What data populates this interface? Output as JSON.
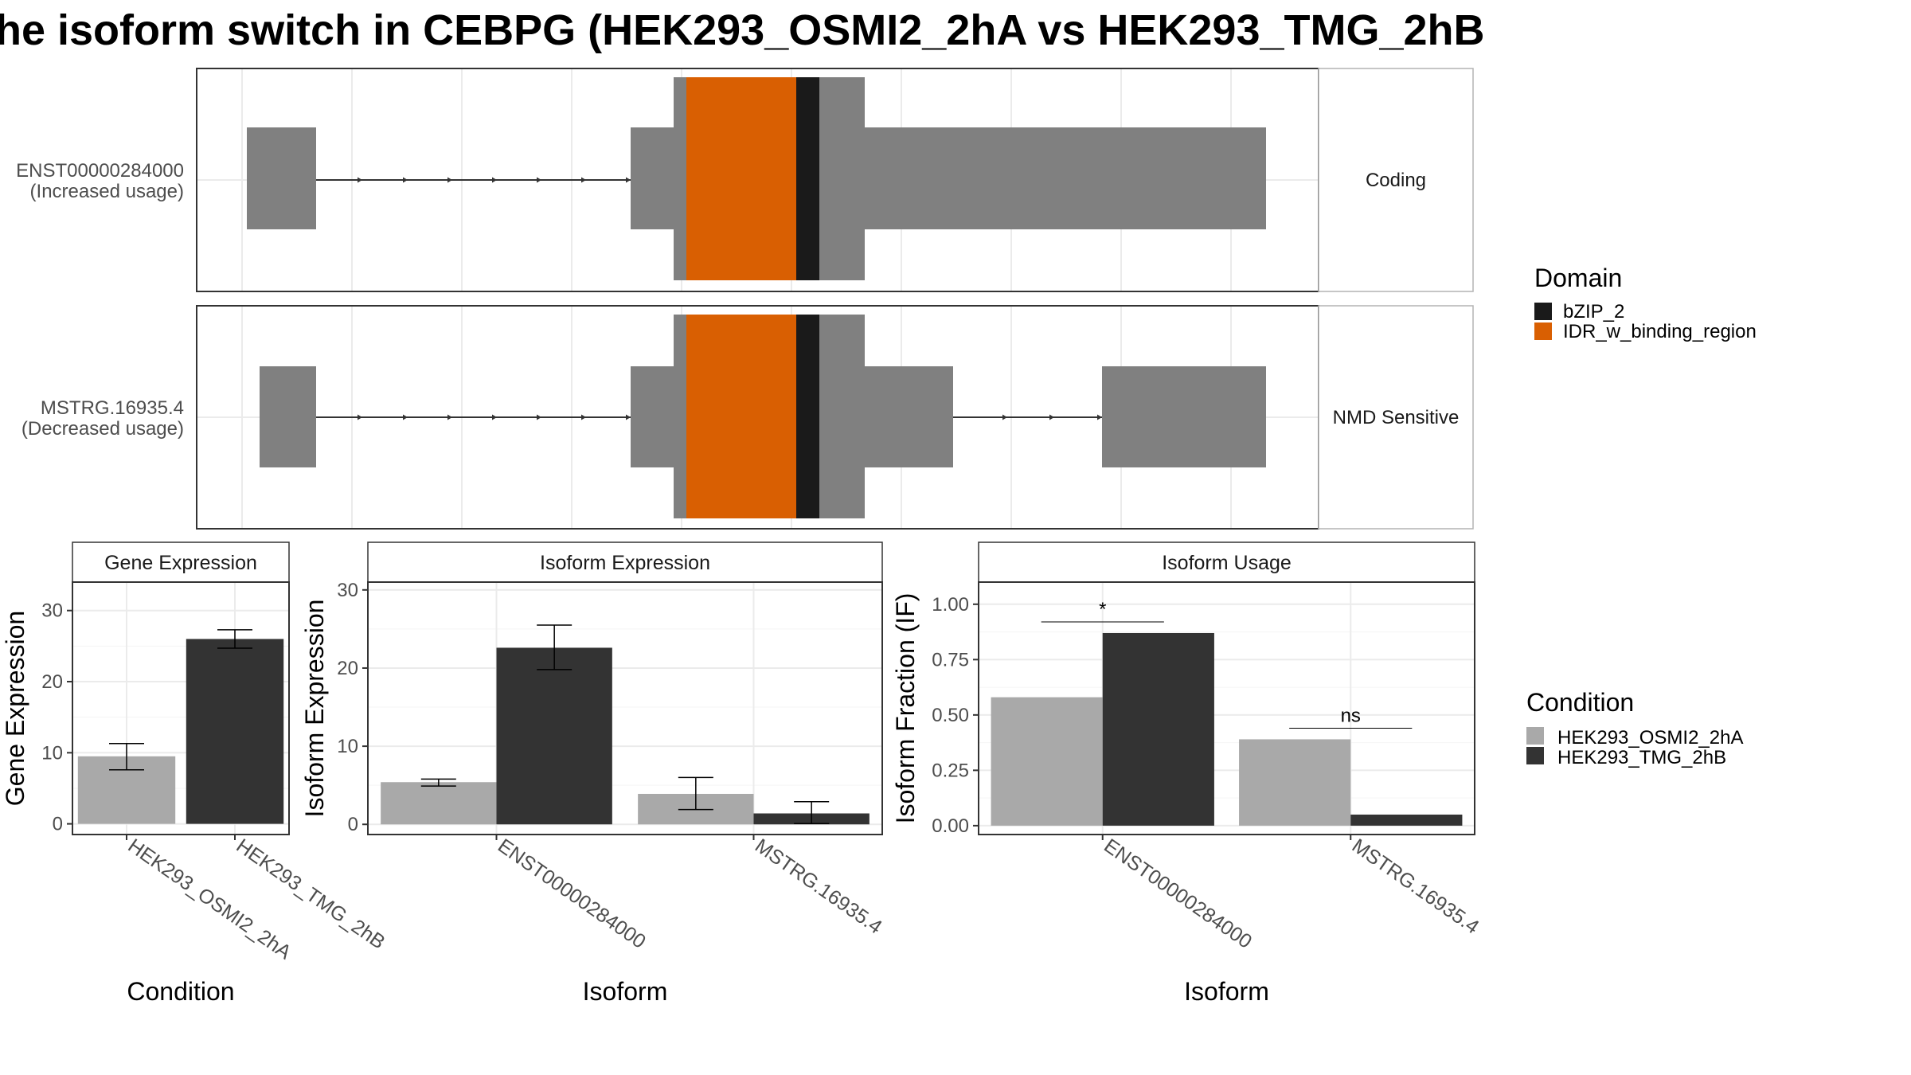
{
  "title": "he isoform switch in CEBPG (HEK293_OSMI2_2hA vs HEK293_TMG_2hB",
  "colors": {
    "exon": "#808080",
    "panel_border": "#333333",
    "strip_border": "#b3b3b3",
    "grid": "#ebebeb",
    "condition_a": "#a9a9a9",
    "condition_b": "#333333",
    "domain_bzip": "#1a1a1a",
    "domain_idr": "#d95f02",
    "intron": "#333333"
  },
  "structure": {
    "rows": [
      {
        "label_line1": "ENST00000284000",
        "label_line2": "(Increased usage)",
        "facet": "Coding"
      },
      {
        "label_line1": "MSTRG.16935.4",
        "label_line2": "(Decreased usage)",
        "facet": "NMD Sensitive"
      }
    ],
    "legend": {
      "title": "Domain",
      "items": [
        {
          "label": "bZIP_2",
          "color": "#1a1a1a"
        },
        {
          "label": "IDR_w_binding_region",
          "color": "#d95f02"
        }
      ]
    }
  },
  "condition_legend": {
    "title": "Condition",
    "items": [
      {
        "label": "HEK293_OSMI2_2hA",
        "color": "#a9a9a9"
      },
      {
        "label": "HEK293_TMG_2hB",
        "color": "#333333"
      }
    ]
  },
  "chart_data": [
    {
      "type": "bar",
      "strip": "Gene Expression",
      "xlabel": "Condition",
      "ylabel": "Gene Expression",
      "ylim": [
        -1.5,
        34
      ],
      "yticks": [
        0,
        10,
        20,
        30
      ],
      "categories": [
        "HEK293_OSMI2_2hA",
        "HEK293_TMG_2hB"
      ],
      "values": [
        9.5,
        26.0
      ],
      "error_low": [
        7.6,
        24.7
      ],
      "error_high": [
        11.3,
        27.3
      ]
    },
    {
      "type": "bar",
      "strip": "Isoform Expression",
      "xlabel": "Isoform",
      "ylabel": "Isoform Expression",
      "ylim": [
        -1.3,
        31
      ],
      "yticks": [
        0,
        10,
        20,
        30
      ],
      "categories": [
        "ENST00000284000",
        "MSTRG.16935.4"
      ],
      "series": [
        {
          "name": "HEK293_OSMI2_2hA",
          "values": [
            5.4,
            3.9
          ],
          "error_low": [
            4.9,
            1.9
          ],
          "error_high": [
            5.8,
            6.0
          ]
        },
        {
          "name": "HEK293_TMG_2hB",
          "values": [
            22.6,
            1.4
          ],
          "error_low": [
            19.8,
            0.1
          ],
          "error_high": [
            25.5,
            2.9
          ]
        }
      ]
    },
    {
      "type": "bar",
      "strip": "Isoform Usage",
      "xlabel": "Isoform",
      "ylabel": "Isoform Fraction (IF)",
      "ylim": [
        -0.04,
        1.1
      ],
      "yticks": [
        "0.00",
        "0.25",
        "0.50",
        "0.75",
        "1.00"
      ],
      "categories": [
        "ENST00000284000",
        "MSTRG.16935.4"
      ],
      "series": [
        {
          "name": "HEK293_OSMI2_2hA",
          "values": [
            0.58,
            0.39
          ]
        },
        {
          "name": "HEK293_TMG_2hB",
          "values": [
            0.87,
            0.05
          ]
        }
      ],
      "significance": [
        {
          "label": "*",
          "y": 0.92
        },
        {
          "label": "ns",
          "y": 0.44
        }
      ]
    }
  ]
}
